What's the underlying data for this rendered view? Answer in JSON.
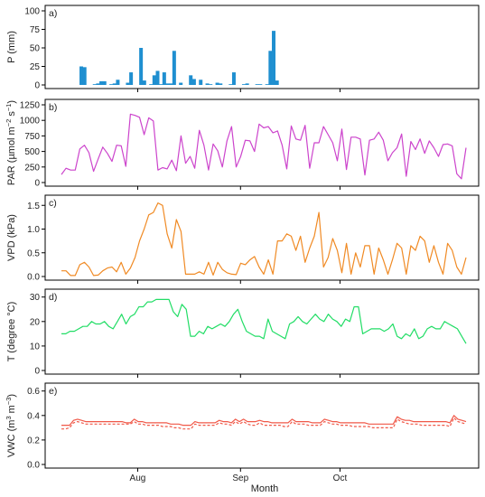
{
  "figure": {
    "xlabel": "Month"
  },
  "chart_data": [
    {
      "type": "bar",
      "panel": "a)",
      "ylabel": "P (mm)",
      "ylim": [
        0,
        100
      ],
      "yticks": [
        0,
        25,
        50,
        75,
        100
      ],
      "xlim": [
        -12,
        110
      ],
      "x_ticks": [
        {
          "x": 11,
          "label": "Aug"
        },
        {
          "x": 42,
          "label": "Sep"
        },
        {
          "x": 72,
          "label": "Oct"
        }
      ],
      "color": "#1f8fd0",
      "x": [
        -6,
        -5,
        -2,
        -1,
        0,
        1,
        3,
        4,
        5,
        8,
        9,
        12,
        13,
        15,
        16,
        17,
        18,
        19,
        20,
        21,
        22,
        24,
        27,
        28,
        30,
        32,
        33,
        35,
        36,
        39,
        40,
        43,
        44,
        47,
        48,
        50,
        51,
        52,
        53,
        54,
        57,
        62,
        63
      ],
      "values": [
        25,
        24,
        1,
        2,
        5,
        5,
        1,
        2,
        7,
        3,
        17,
        50,
        6,
        1,
        13,
        19,
        1,
        17,
        2,
        2,
        46,
        3,
        13,
        8,
        7,
        2,
        1,
        3,
        2,
        1,
        17,
        1,
        2,
        1,
        1,
        1,
        46,
        73,
        6,
        0,
        0,
        0,
        0
      ]
    },
    {
      "type": "line",
      "panel": "b)",
      "ylabel": "PAR (µmol m",
      "ylabel_sup1": "−2",
      "ylabel_mid": " s",
      "ylabel_sup2": "−1",
      "ylabel_end": ")",
      "ylim": [
        0,
        1250
      ],
      "yticks": [
        0,
        250,
        500,
        750,
        1000,
        1250
      ],
      "color": "#cc44cc",
      "series": [
        {
          "values": [
            130,
            230,
            200,
            200,
            540,
            600,
            480,
            180,
            380,
            570,
            470,
            340,
            600,
            590,
            260,
            1100,
            1080,
            1050,
            770,
            1040,
            990,
            200,
            240,
            220,
            360,
            190,
            750,
            310,
            420,
            230,
            840,
            600,
            200,
            620,
            510,
            250,
            670,
            900,
            250,
            420,
            680,
            670,
            500,
            940,
            880,
            900,
            800,
            830,
            600,
            220,
            910,
            700,
            680,
            920,
            230,
            640,
            640,
            900,
            770,
            640,
            350,
            860,
            210,
            730,
            730,
            700,
            120,
            680,
            700,
            810,
            680,
            350,
            480,
            560,
            780,
            100,
            660,
            530,
            700,
            470,
            670,
            560,
            420,
            610,
            620,
            590,
            140,
            60,
            560
          ]
        }
      ]
    },
    {
      "type": "line",
      "panel": "c)",
      "ylabel": "VPD (kPa)",
      "ylim": [
        0,
        1.6
      ],
      "yticks": [
        0.0,
        0.5,
        1.0,
        1.5
      ],
      "color": "#f08a24",
      "series": [
        {
          "values": [
            0.12,
            0.12,
            0.02,
            0.02,
            0.25,
            0.3,
            0.2,
            0.02,
            0.03,
            0.12,
            0.18,
            0.2,
            0.1,
            0.3,
            0.05,
            0.18,
            0.4,
            0.75,
            1.0,
            1.3,
            1.35,
            1.55,
            1.5,
            0.9,
            0.6,
            1.2,
            0.95,
            0.05,
            0.05,
            0.05,
            0.1,
            0.05,
            0.3,
            0.03,
            0.3,
            0.15,
            0.08,
            0.05,
            0.04,
            0.28,
            0.25,
            0.35,
            0.42,
            0.2,
            0.05,
            0.35,
            0.05,
            0.75,
            0.75,
            0.9,
            0.85,
            0.55,
            0.85,
            0.3,
            0.6,
            0.85,
            1.35,
            0.2,
            0.4,
            0.8,
            0.55,
            0.08,
            0.7,
            0.05,
            0.5,
            0.2,
            0.65,
            0.65,
            0.05,
            0.6,
            0.35,
            0.05,
            0.35,
            0.7,
            0.6,
            0.05,
            0.65,
            0.55,
            0.85,
            0.75,
            0.3,
            0.65,
            0.3,
            0.05,
            0.7,
            0.55,
            0.2,
            0.05,
            0.4
          ]
        }
      ]
    },
    {
      "type": "line",
      "panel": "d)",
      "ylabel": "T (degree °C)",
      "ylim": [
        0,
        31
      ],
      "yticks": [
        0,
        10,
        20,
        30
      ],
      "color": "#22dd66",
      "series": [
        {
          "values": [
            15,
            15,
            16,
            16,
            17,
            18,
            18,
            20,
            19,
            19,
            20,
            18,
            17,
            20,
            23,
            19,
            22,
            23,
            26,
            26,
            28,
            28,
            29,
            29,
            29,
            29,
            24,
            22,
            27,
            25,
            14,
            14,
            16,
            15,
            18,
            17,
            18,
            19,
            18,
            20,
            23,
            25,
            20,
            16,
            15,
            14,
            14,
            13,
            21,
            16,
            15,
            14,
            13,
            19,
            20,
            22,
            20,
            19,
            21,
            23,
            21,
            20,
            23,
            21,
            20,
            18,
            21,
            20,
            26,
            26,
            15,
            16,
            17,
            17,
            17,
            16,
            17,
            19,
            14,
            13,
            15,
            14,
            17,
            13,
            14,
            17,
            18,
            17,
            17,
            20,
            19,
            18,
            17,
            14,
            11
          ]
        }
      ]
    },
    {
      "type": "line",
      "panel": "e)",
      "ylabel": "VWC (m",
      "ylabel_sup1": "3",
      "ylabel_mid": " m",
      "ylabel_sup2": "−3",
      "ylabel_end": ")",
      "ylim": [
        0,
        0.62
      ],
      "yticks": [
        0.0,
        0.2,
        0.4,
        0.6
      ],
      "color": "#f05848",
      "series": [
        {
          "name": "solid",
          "values": [
            0.32,
            0.32,
            0.32,
            0.36,
            0.37,
            0.36,
            0.35,
            0.35,
            0.35,
            0.35,
            0.35,
            0.35,
            0.35,
            0.35,
            0.35,
            0.35,
            0.34,
            0.34,
            0.37,
            0.35,
            0.35,
            0.34,
            0.34,
            0.34,
            0.34,
            0.34,
            0.34,
            0.33,
            0.33,
            0.33,
            0.32,
            0.32,
            0.32,
            0.35,
            0.34,
            0.34,
            0.34,
            0.34,
            0.34,
            0.36,
            0.35,
            0.35,
            0.34,
            0.37,
            0.35,
            0.37,
            0.35,
            0.35,
            0.35,
            0.36,
            0.35,
            0.35,
            0.34,
            0.34,
            0.34,
            0.34,
            0.34,
            0.37,
            0.35,
            0.35,
            0.35,
            0.35,
            0.34,
            0.34,
            0.34,
            0.37,
            0.36,
            0.35,
            0.35,
            0.34,
            0.34,
            0.34,
            0.34,
            0.34,
            0.34,
            0.34,
            0.33,
            0.33,
            0.33,
            0.33,
            0.33,
            0.33,
            0.33,
            0.39,
            0.37,
            0.36,
            0.36,
            0.35,
            0.35,
            0.35,
            0.35,
            0.35,
            0.35,
            0.35,
            0.35,
            0.35,
            0.34,
            0.4,
            0.37,
            0.36,
            0.35
          ]
        },
        {
          "name": "dashed",
          "values": [
            0.29,
            0.29,
            0.3,
            0.34,
            0.35,
            0.34,
            0.33,
            0.33,
            0.33,
            0.33,
            0.33,
            0.33,
            0.33,
            0.33,
            0.33,
            0.33,
            0.33,
            0.33,
            0.35,
            0.33,
            0.33,
            0.32,
            0.32,
            0.32,
            0.32,
            0.31,
            0.31,
            0.31,
            0.3,
            0.3,
            0.29,
            0.29,
            0.29,
            0.33,
            0.32,
            0.32,
            0.32,
            0.32,
            0.32,
            0.34,
            0.33,
            0.33,
            0.32,
            0.35,
            0.33,
            0.35,
            0.33,
            0.32,
            0.32,
            0.34,
            0.32,
            0.32,
            0.32,
            0.32,
            0.32,
            0.31,
            0.31,
            0.35,
            0.33,
            0.33,
            0.33,
            0.32,
            0.32,
            0.32,
            0.32,
            0.35,
            0.34,
            0.33,
            0.33,
            0.32,
            0.32,
            0.32,
            0.31,
            0.31,
            0.31,
            0.31,
            0.31,
            0.3,
            0.3,
            0.3,
            0.3,
            0.3,
            0.3,
            0.37,
            0.35,
            0.34,
            0.33,
            0.33,
            0.33,
            0.32,
            0.32,
            0.32,
            0.32,
            0.32,
            0.32,
            0.32,
            0.31,
            0.38,
            0.35,
            0.34,
            0.33
          ]
        }
      ]
    }
  ]
}
